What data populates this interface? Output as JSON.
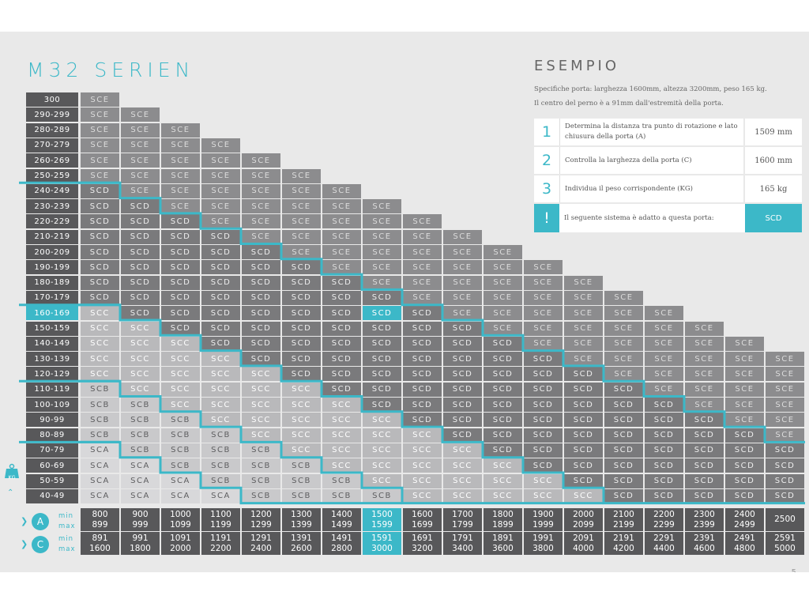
{
  "title": "M32 SERIEN",
  "example": {
    "title": "ESEMPIO",
    "line1": "Specifiche porta: larghezza 1600mm, altezza 3200mm, peso 165 kg.",
    "line2": "Il centro del perno è a 91mm dall'estremità della porta.",
    "rows": [
      {
        "num": "1",
        "desc": "Determina la distanza tra punto di rotazione e lato chiusura della porta (A)",
        "val": "1509 mm"
      },
      {
        "num": "2",
        "desc": "Controlla la larghezza della porta (C)",
        "val": "1600 mm"
      },
      {
        "num": "3",
        "desc": "Individua il peso corrispondente (KG)",
        "val": "165 kg"
      },
      {
        "num": "!",
        "desc": "Il seguente sistema è adatto a questa porta:",
        "val": "SCD"
      }
    ]
  },
  "weight_rows": [
    "300",
    "290-299",
    "280-289",
    "270-279",
    "260-269",
    "250-259",
    "240-249",
    "230-239",
    "220-229",
    "210-219",
    "200-209",
    "190-199",
    "180-189",
    "170-179",
    "160-169",
    "150-159",
    "140-149",
    "130-139",
    "120-129",
    "110-119",
    "100-109",
    "90-99",
    "80-89",
    "70-79",
    "60-69",
    "50-59",
    "40-49"
  ],
  "highlight_row": 14,
  "highlight_col": 7,
  "cells": [
    [
      "SCE"
    ],
    [
      "SCE",
      "SCE"
    ],
    [
      "SCE",
      "SCE",
      "SCE"
    ],
    [
      "SCE",
      "SCE",
      "SCE",
      "SCE"
    ],
    [
      "SCE",
      "SCE",
      "SCE",
      "SCE",
      "SCE"
    ],
    [
      "SCE",
      "SCE",
      "SCE",
      "SCE",
      "SCE",
      "SCE"
    ],
    [
      "SCD",
      "SCE",
      "SCE",
      "SCE",
      "SCE",
      "SCE",
      "SCE"
    ],
    [
      "SCD",
      "SCD",
      "SCE",
      "SCE",
      "SCE",
      "SCE",
      "SCE",
      "SCE"
    ],
    [
      "SCD",
      "SCD",
      "SCD",
      "SCE",
      "SCE",
      "SCE",
      "SCE",
      "SCE",
      "SCE"
    ],
    [
      "SCD",
      "SCD",
      "SCD",
      "SCD",
      "SCE",
      "SCE",
      "SCE",
      "SCE",
      "SCE",
      "SCE"
    ],
    [
      "SCD",
      "SCD",
      "SCD",
      "SCD",
      "SCD",
      "SCE",
      "SCE",
      "SCE",
      "SCE",
      "SCE",
      "SCE"
    ],
    [
      "SCD",
      "SCD",
      "SCD",
      "SCD",
      "SCD",
      "SCD",
      "SCE",
      "SCE",
      "SCE",
      "SCE",
      "SCE",
      "SCE"
    ],
    [
      "SCD",
      "SCD",
      "SCD",
      "SCD",
      "SCD",
      "SCD",
      "SCD",
      "SCE",
      "SCE",
      "SCE",
      "SCE",
      "SCE",
      "SCE"
    ],
    [
      "SCD",
      "SCD",
      "SCD",
      "SCD",
      "SCD",
      "SCD",
      "SCD",
      "SCD",
      "SCE",
      "SCE",
      "SCE",
      "SCE",
      "SCE",
      "SCE"
    ],
    [
      "SCC",
      "SCD",
      "SCD",
      "SCD",
      "SCD",
      "SCD",
      "SCD",
      "SCD",
      "SCD",
      "SCE",
      "SCE",
      "SCE",
      "SCE",
      "SCE",
      "SCE"
    ],
    [
      "SCC",
      "SCC",
      "SCD",
      "SCD",
      "SCD",
      "SCD",
      "SCD",
      "SCD",
      "SCD",
      "SCD",
      "SCE",
      "SCE",
      "SCE",
      "SCE",
      "SCE",
      "SCE"
    ],
    [
      "SCC",
      "SCC",
      "SCC",
      "SCD",
      "SCD",
      "SCD",
      "SCD",
      "SCD",
      "SCD",
      "SCD",
      "SCD",
      "SCE",
      "SCE",
      "SCE",
      "SCE",
      "SCE",
      "SCE"
    ],
    [
      "SCC",
      "SCC",
      "SCC",
      "SCC",
      "SCD",
      "SCD",
      "SCD",
      "SCD",
      "SCD",
      "SCD",
      "SCD",
      "SCD",
      "SCE",
      "SCE",
      "SCE",
      "SCE",
      "SCE",
      "SCE"
    ],
    [
      "SCC",
      "SCC",
      "SCC",
      "SCC",
      "SCC",
      "SCD",
      "SCD",
      "SCD",
      "SCD",
      "SCD",
      "SCD",
      "SCD",
      "SCD",
      "SCE",
      "SCE",
      "SCE",
      "SCE",
      "SCE"
    ],
    [
      "SCB",
      "SCC",
      "SCC",
      "SCC",
      "SCC",
      "SCC",
      "SCD",
      "SCD",
      "SCD",
      "SCD",
      "SCD",
      "SCD",
      "SCD",
      "SCD",
      "SCE",
      "SCE",
      "SCE",
      "SCE"
    ],
    [
      "SCB",
      "SCB",
      "SCC",
      "SCC",
      "SCC",
      "SCC",
      "SCC",
      "SCD",
      "SCD",
      "SCD",
      "SCD",
      "SCD",
      "SCD",
      "SCD",
      "SCD",
      "SCE",
      "SCE",
      "SCE"
    ],
    [
      "SCB",
      "SCB",
      "SCB",
      "SCC",
      "SCC",
      "SCC",
      "SCC",
      "SCC",
      "SCD",
      "SCD",
      "SCD",
      "SCD",
      "SCD",
      "SCD",
      "SCD",
      "SCD",
      "SCE",
      "SCE"
    ],
    [
      "SCB",
      "SCB",
      "SCB",
      "SCB",
      "SCC",
      "SCC",
      "SCC",
      "SCC",
      "SCC",
      "SCD",
      "SCD",
      "SCD",
      "SCD",
      "SCD",
      "SCD",
      "SCD",
      "SCD",
      "SCE"
    ],
    [
      "SCA",
      "SCB",
      "SCB",
      "SCB",
      "SCB",
      "SCC",
      "SCC",
      "SCC",
      "SCC",
      "SCC",
      "SCD",
      "SCD",
      "SCD",
      "SCD",
      "SCD",
      "SCD",
      "SCD",
      "SCD"
    ],
    [
      "SCA",
      "SCA",
      "SCB",
      "SCB",
      "SCB",
      "SCB",
      "SCC",
      "SCC",
      "SCC",
      "SCC",
      "SCC",
      "SCD",
      "SCD",
      "SCD",
      "SCD",
      "SCD",
      "SCD",
      "SCD"
    ],
    [
      "SCA",
      "SCA",
      "SCA",
      "SCB",
      "SCB",
      "SCB",
      "SCB",
      "SCC",
      "SCC",
      "SCC",
      "SCC",
      "SCC",
      "SCD",
      "SCD",
      "SCD",
      "SCD",
      "SCD",
      "SCD"
    ],
    [
      "SCA",
      "SCA",
      "SCA",
      "SCA",
      "SCB",
      "SCB",
      "SCB",
      "SCB",
      "SCC",
      "SCC",
      "SCC",
      "SCC",
      "SCC",
      "SCD",
      "SCD",
      "SCD",
      "SCD",
      "SCD"
    ]
  ],
  "columns": [
    {
      "a_min": "800",
      "a_max": "899",
      "c_min": "891",
      "c_max": "1600"
    },
    {
      "a_min": "900",
      "a_max": "999",
      "c_min": "991",
      "c_max": "1800"
    },
    {
      "a_min": "1000",
      "a_max": "1099",
      "c_min": "1091",
      "c_max": "2000"
    },
    {
      "a_min": "1100",
      "a_max": "1199",
      "c_min": "1191",
      "c_max": "2200"
    },
    {
      "a_min": "1200",
      "a_max": "1299",
      "c_min": "1291",
      "c_max": "2400"
    },
    {
      "a_min": "1300",
      "a_max": "1399",
      "c_min": "1391",
      "c_max": "2600"
    },
    {
      "a_min": "1400",
      "a_max": "1499",
      "c_min": "1491",
      "c_max": "2800"
    },
    {
      "a_min": "1500",
      "a_max": "1599",
      "c_min": "1591",
      "c_max": "3000"
    },
    {
      "a_min": "1600",
      "a_max": "1699",
      "c_min": "1691",
      "c_max": "3200"
    },
    {
      "a_min": "1700",
      "a_max": "1799",
      "c_min": "1791",
      "c_max": "3400"
    },
    {
      "a_min": "1800",
      "a_max": "1899",
      "c_min": "1891",
      "c_max": "3600"
    },
    {
      "a_min": "1900",
      "a_max": "1999",
      "c_min": "1991",
      "c_max": "3800"
    },
    {
      "a_min": "2000",
      "a_max": "2099",
      "c_min": "2091",
      "c_max": "4000"
    },
    {
      "a_min": "2100",
      "a_max": "2199",
      "c_min": "2191",
      "c_max": "4200"
    },
    {
      "a_min": "2200",
      "a_max": "2299",
      "c_min": "2291",
      "c_max": "4400"
    },
    {
      "a_min": "2300",
      "a_max": "2399",
      "c_min": "2391",
      "c_max": "4600"
    },
    {
      "a_min": "2400",
      "a_max": "2499",
      "c_min": "2491",
      "c_max": "4800"
    },
    {
      "a_min": "2500",
      "a_max": "",
      "c_min": "2591",
      "c_max": "5000"
    }
  ],
  "footer_labels": {
    "a": "A",
    "c": "C",
    "min": "min",
    "max": "max",
    "kg": "KG"
  },
  "colors": {
    "SCE": "#8c8c8e",
    "SCD": "#7a7a7c",
    "SCC": "#b9b9bb",
    "SCB": "#c9c9cb",
    "SCA": "#d8d8da",
    "accent": "#3cb8c8",
    "label_bg": "#58585a"
  },
  "text_colors": {
    "SCE": "#dcdcdc",
    "SCD": "#eeeeee",
    "SCC": "#ffffff",
    "SCB": "#5e5e60",
    "SCA": "#5e5e60"
  },
  "page_number": "5"
}
